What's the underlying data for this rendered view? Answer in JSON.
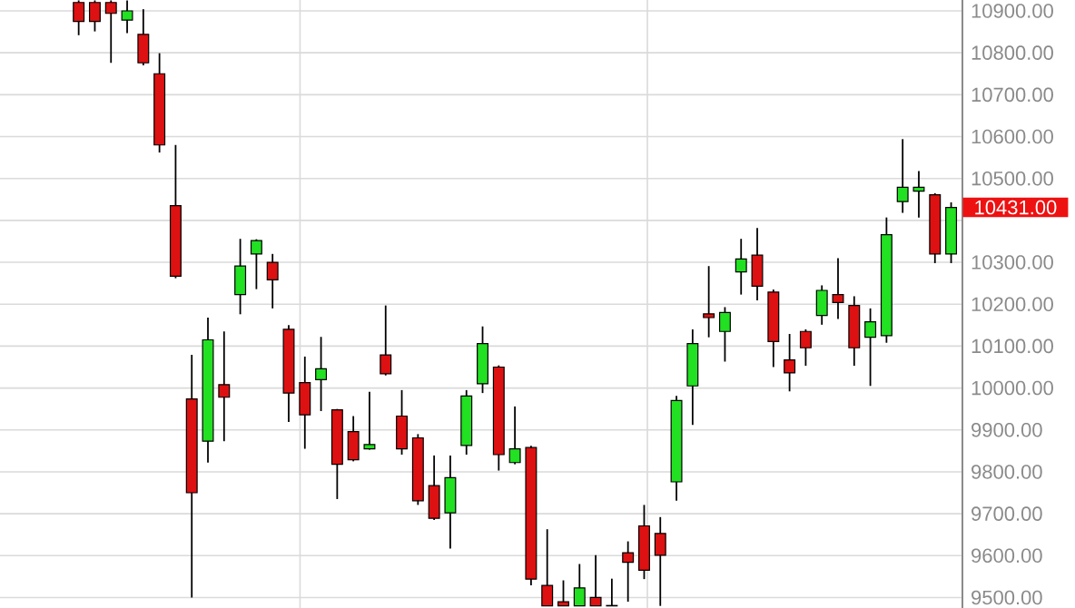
{
  "chart_data": {
    "type": "candlestick",
    "categories": [
      null,
      null,
      null,
      null,
      null,
      null,
      null,
      null,
      null,
      null,
      null,
      null,
      null,
      null,
      null,
      null,
      null,
      null,
      null,
      null,
      null,
      null,
      null,
      null,
      null,
      null,
      null,
      null,
      null,
      null,
      null,
      null,
      null,
      null,
      null,
      null,
      null,
      null,
      null,
      null,
      null,
      null,
      null,
      null,
      null,
      null,
      null,
      null,
      null,
      null,
      null,
      null,
      null,
      null,
      null
    ],
    "ohlc": [
      [
        10920,
        10925,
        10842,
        10875
      ],
      [
        10920,
        10925,
        10851,
        10875
      ],
      [
        10920,
        10925,
        10776,
        10894
      ],
      [
        10878,
        10925,
        10847,
        10900
      ],
      [
        10844,
        10904,
        10770,
        10776
      ],
      [
        10750,
        10799,
        10562,
        10580
      ],
      [
        10435,
        10580,
        10262,
        10267
      ],
      [
        9974,
        10079,
        9500,
        9750
      ],
      [
        9873,
        10168,
        9822,
        10115
      ],
      [
        10008,
        10135,
        9873,
        9978
      ],
      [
        10223,
        10356,
        10176,
        10291
      ],
      [
        10320,
        10355,
        10236,
        10352
      ],
      [
        10300,
        10320,
        10190,
        10258
      ],
      [
        10140,
        10150,
        9919,
        9988
      ],
      [
        10013,
        10075,
        9855,
        9936
      ],
      [
        10020,
        10122,
        9945,
        10046
      ],
      [
        9948,
        9950,
        9735,
        9818
      ],
      [
        9896,
        9933,
        9825,
        9829
      ],
      [
        9855,
        9991,
        9853,
        9865
      ],
      [
        10079,
        10197,
        10030,
        10034
      ],
      [
        9933,
        9995,
        9841,
        9855
      ],
      [
        9881,
        9890,
        9721,
        9731
      ],
      [
        9767,
        9839,
        9685,
        9689
      ],
      [
        9702,
        9839,
        9617,
        9786
      ],
      [
        9863,
        9995,
        9841,
        9981
      ],
      [
        10010,
        10147,
        9988,
        10106
      ],
      [
        10050,
        10054,
        9803,
        9841
      ],
      [
        9822,
        9956,
        9818,
        9855
      ],
      [
        9858,
        9862,
        9529,
        9544
      ],
      [
        9529,
        9663,
        9480,
        9480
      ],
      [
        9490,
        9541,
        9480,
        9480
      ],
      [
        9480,
        9580,
        9480,
        9523
      ],
      [
        9500,
        9601,
        9480,
        9480
      ],
      [
        9481,
        9545,
        9480,
        9480
      ],
      [
        9607,
        9634,
        9490,
        9584
      ],
      [
        9671,
        9721,
        9544,
        9565
      ],
      [
        9653,
        9692,
        9480,
        9601
      ],
      [
        9776,
        9981,
        9731,
        9970
      ],
      [
        10005,
        10140,
        9912,
        10106
      ],
      [
        10177,
        10291,
        10121,
        10168
      ],
      [
        10135,
        10193,
        10063,
        10180
      ],
      [
        10277,
        10356,
        10223,
        10308
      ],
      [
        10317,
        10382,
        10209,
        10243
      ],
      [
        10229,
        10235,
        10050,
        10111
      ],
      [
        10067,
        10129,
        9992,
        10036
      ],
      [
        10135,
        10140,
        10053,
        10096
      ],
      [
        10173,
        10245,
        10151,
        10233
      ],
      [
        10223,
        10310,
        10165,
        10204
      ],
      [
        10197,
        10219,
        10053,
        10096
      ],
      [
        10121,
        10190,
        10005,
        10158
      ],
      [
        10125,
        10407,
        10108,
        10366
      ],
      [
        10445,
        10594,
        10418,
        10479
      ],
      [
        10470,
        10518,
        10407,
        10479
      ],
      [
        10461,
        10465,
        10298,
        10320
      ],
      [
        10320,
        10443,
        10298,
        10431
      ]
    ],
    "colors": [
      "#dd1111",
      "#dd1111",
      "#dd1111",
      "#22e022",
      "#dd1111",
      "#dd1111",
      "#dd1111",
      "#dd1111",
      "#22e022",
      "#dd1111",
      "#22e022",
      "#22e022",
      "#dd1111",
      "#dd1111",
      "#dd1111",
      "#22e022",
      "#dd1111",
      "#dd1111",
      "#22e022",
      "#dd1111",
      "#dd1111",
      "#dd1111",
      "#dd1111",
      "#22e022",
      "#22e022",
      "#22e022",
      "#dd1111",
      "#22e022",
      "#dd1111",
      "#dd1111",
      "#dd1111",
      "#22e022",
      "#dd1111",
      "#dd1111",
      "#dd1111",
      "#dd1111",
      "#dd1111",
      "#22e022",
      "#22e022",
      "#dd1111",
      "#22e022",
      "#22e022",
      "#dd1111",
      "#dd1111",
      "#dd1111",
      "#dd1111",
      "#22e022",
      "#dd1111",
      "#dd1111",
      "#22e022",
      "#22e022",
      "#22e022",
      "#22e022",
      "#dd1111",
      "#22e022"
    ],
    "ylim": [
      9475,
      10926
    ],
    "yticks": [
      {
        "value": 9500,
        "label": "9500.00"
      },
      {
        "value": 9600,
        "label": "9600.00"
      },
      {
        "value": 9700,
        "label": "9700.00"
      },
      {
        "value": 9800,
        "label": "9800.00"
      },
      {
        "value": 9900,
        "label": "9900.00"
      },
      {
        "value": 10000,
        "label": "10000.00"
      },
      {
        "value": 10100,
        "label": "10100.00"
      },
      {
        "value": 10200,
        "label": "10200.00"
      },
      {
        "value": 10300,
        "label": "10300.00"
      },
      {
        "value": 10400,
        "label": null
      },
      {
        "value": 10500,
        "label": "10500.00"
      },
      {
        "value": 10600,
        "label": "10600.00"
      },
      {
        "value": 10700,
        "label": "10700.00"
      },
      {
        "value": 10800,
        "label": "10800.00"
      },
      {
        "value": 10900,
        "label": "10900.00"
      }
    ],
    "grid": "y",
    "annotations": [
      "10431.00"
    ]
  }
}
